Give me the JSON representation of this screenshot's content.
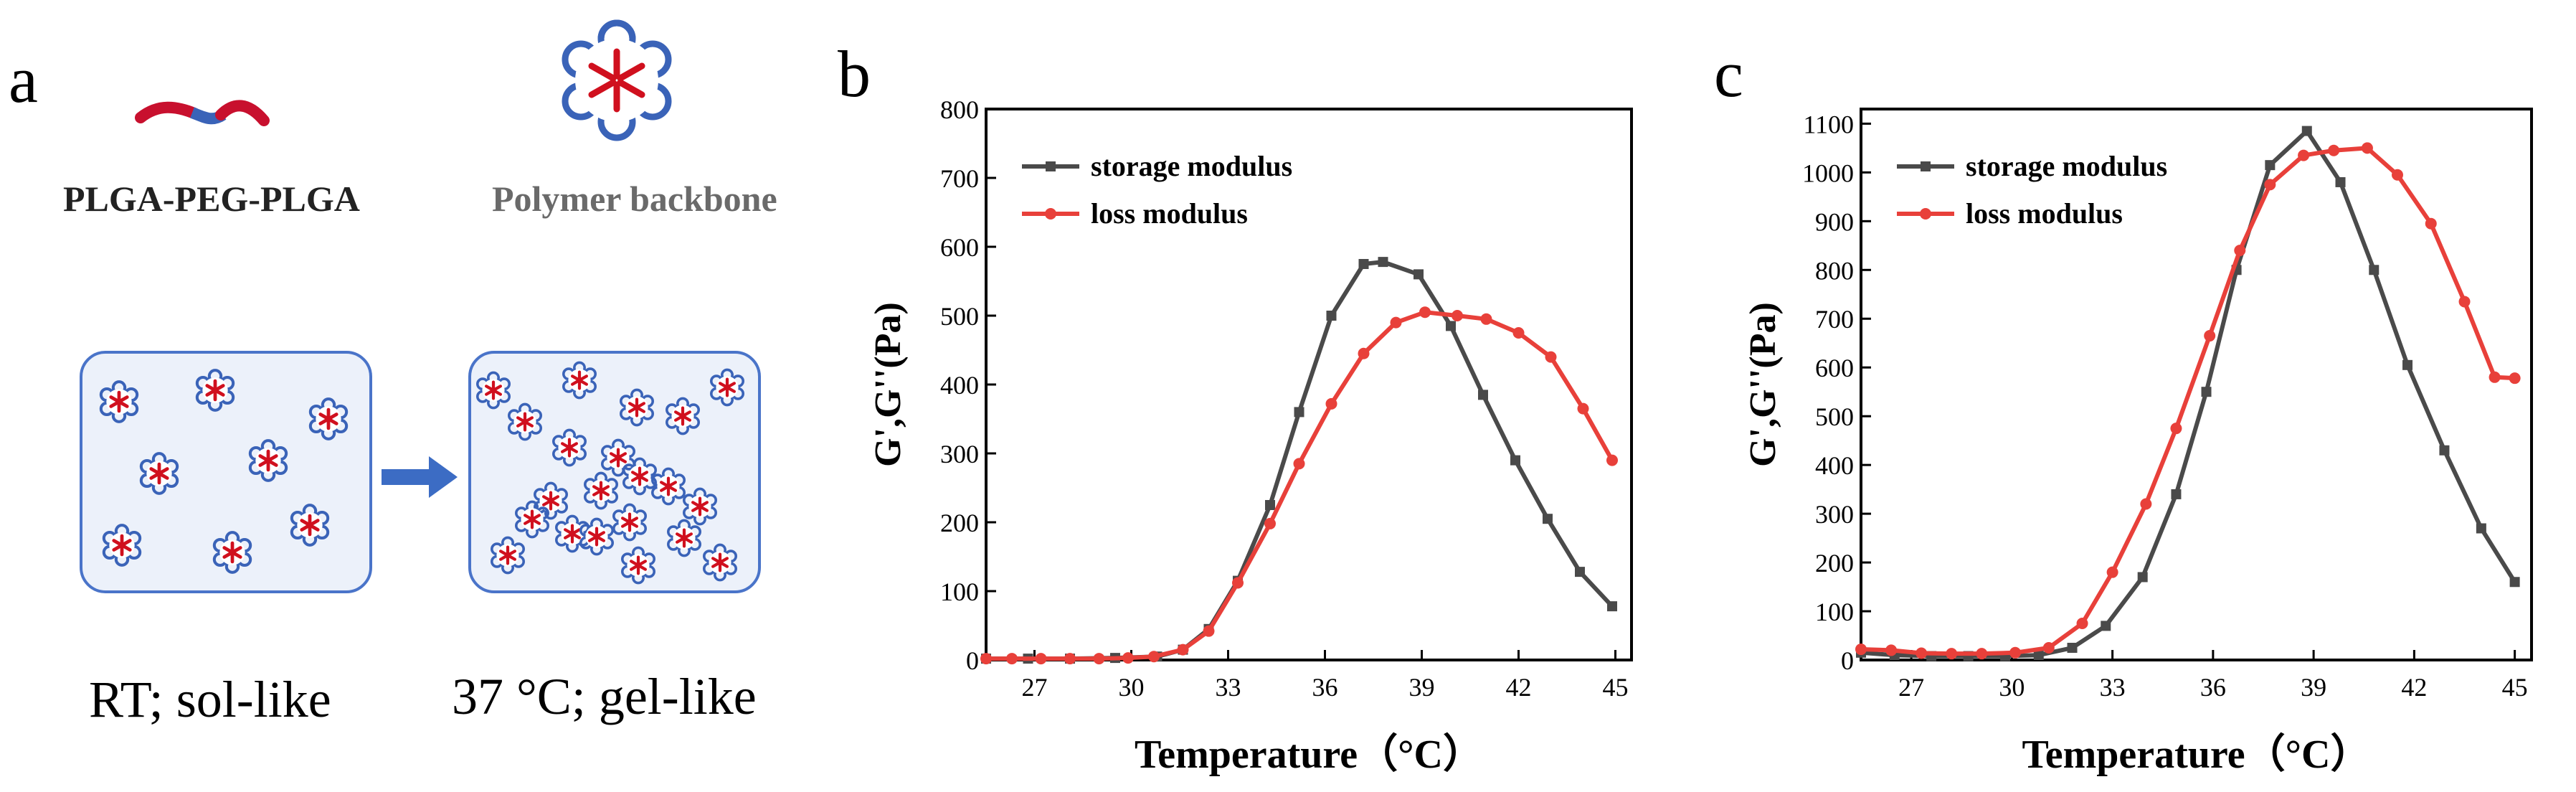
{
  "panel_a": {
    "letter": "a",
    "copolymer_label": "PLGA-PEG-PLGA",
    "backbone_label": "Polymer backbone",
    "condition_rt": "RT; sol-like",
    "condition_37": "37 °C; gel-like",
    "colors": {
      "plga": "#c8102e",
      "peg": "#3a63b8",
      "box_border": "#4a74c9",
      "box_fill": "#ecf1fa",
      "arrow": "#3c6cc4"
    }
  },
  "chart_data": [
    {
      "panel": "b",
      "type": "line",
      "xlabel": "Temperature（°C）",
      "ylabel": "G',G''(Pa)",
      "xlim": [
        25.5,
        45.5
      ],
      "ylim": [
        0,
        800
      ],
      "xticks": [
        27,
        30,
        33,
        36,
        39,
        42,
        45
      ],
      "yticks": [
        0,
        100,
        200,
        300,
        400,
        500,
        600,
        700,
        800
      ],
      "legend_position": "top-left",
      "series": [
        {
          "name": "storage modulus",
          "color": "#4a4a4a",
          "marker": "square",
          "x": [
            25.5,
            26.8,
            28.1,
            29.5,
            30.8,
            31.6,
            32.4,
            33.3,
            34.3,
            35.2,
            36.2,
            37.2,
            37.8,
            38.9,
            39.9,
            40.9,
            41.9,
            42.9,
            43.9,
            44.9
          ],
          "y": [
            2,
            2,
            2,
            3,
            5,
            15,
            45,
            115,
            225,
            360,
            500,
            575,
            578,
            560,
            485,
            385,
            290,
            205,
            128,
            78
          ]
        },
        {
          "name": "loss modulus",
          "color": "#e8403a",
          "marker": "circle",
          "x": [
            25.5,
            26.3,
            27.2,
            28.1,
            29.0,
            29.9,
            30.7,
            31.6,
            32.4,
            33.3,
            34.3,
            35.2,
            36.2,
            37.2,
            38.2,
            39.1,
            40.1,
            41.0,
            42.0,
            43.0,
            44.0,
            44.9
          ],
          "y": [
            2,
            2,
            2,
            2,
            2,
            3,
            5,
            15,
            42,
            112,
            198,
            285,
            372,
            445,
            490,
            505,
            500,
            495,
            475,
            440,
            365,
            290
          ]
        }
      ]
    },
    {
      "panel": "c",
      "type": "line",
      "xlabel": "Temperature（°C）",
      "ylabel": "G',G''(Pa)",
      "xlim": [
        25.5,
        45.5
      ],
      "ylim": [
        0,
        1130
      ],
      "xticks": [
        27,
        30,
        33,
        36,
        39,
        42,
        45
      ],
      "yticks": [
        0,
        100,
        200,
        300,
        400,
        500,
        600,
        700,
        800,
        900,
        1000,
        1100
      ],
      "legend_position": "top-left",
      "series": [
        {
          "name": "storage modulus",
          "color": "#4a4a4a",
          "marker": "square",
          "x": [
            25.5,
            26.5,
            27.6,
            28.7,
            29.8,
            30.8,
            31.8,
            32.8,
            33.9,
            34.9,
            35.8,
            36.7,
            37.7,
            38.8,
            39.8,
            40.8,
            41.8,
            42.9,
            44.0,
            45.0
          ],
          "y": [
            15,
            10,
            8,
            8,
            8,
            10,
            25,
            70,
            170,
            340,
            550,
            800,
            1015,
            1085,
            980,
            800,
            605,
            430,
            270,
            160
          ]
        },
        {
          "name": "loss modulus",
          "color": "#e8403a",
          "marker": "circle",
          "x": [
            25.5,
            26.4,
            27.3,
            28.2,
            29.1,
            30.1,
            31.1,
            32.1,
            33.0,
            34.0,
            34.9,
            35.9,
            36.8,
            37.7,
            38.7,
            39.6,
            40.6,
            41.5,
            42.5,
            43.5,
            44.4,
            45.0
          ],
          "y": [
            22,
            20,
            14,
            13,
            13,
            15,
            25,
            75,
            180,
            320,
            475,
            665,
            840,
            975,
            1035,
            1045,
            1050,
            995,
            895,
            735,
            580,
            578
          ]
        }
      ]
    }
  ]
}
